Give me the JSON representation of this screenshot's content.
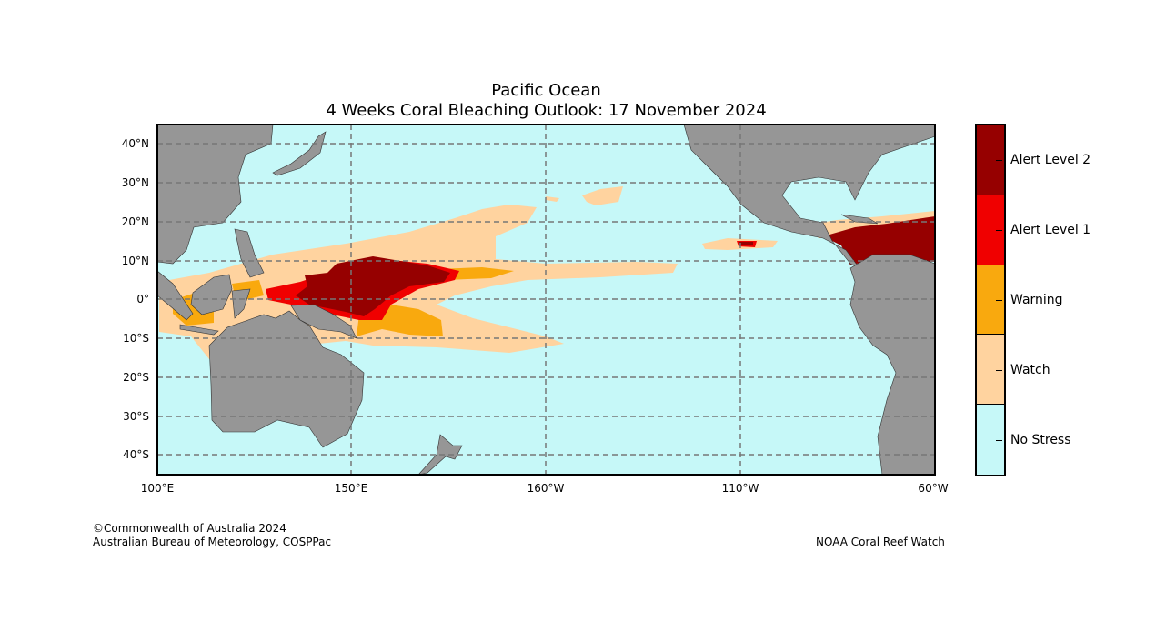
{
  "title": {
    "line1": "Pacific Ocean",
    "line2": "4 Weeks Coral Bleaching Outlook: 17 November 2024"
  },
  "map": {
    "extent_lon": [
      "100°E",
      "60°W"
    ],
    "lat_ticks": [
      "40°N",
      "30°N",
      "20°N",
      "10°N",
      "0°",
      "10°S",
      "20°S",
      "30°S",
      "40°S"
    ],
    "lon_ticks": [
      "100°E",
      "150°E",
      "160°W",
      "110°W",
      "60°W"
    ]
  },
  "colors": {
    "ocean": "#c6f8f8",
    "land": "#969696",
    "no_stress": "#c6f8f8",
    "watch": "#ffd39f",
    "warning": "#f9a90e",
    "alert1": "#f00000",
    "alert2": "#960000"
  },
  "legend": [
    "Alert Level 2",
    "Alert Level 1",
    "Warning",
    "Watch",
    "No Stress"
  ],
  "footer": {
    "copyright": "©Commonwealth of Australia 2024",
    "bureau": "Australian Bureau of Meteorology, COSPPac",
    "source": "NOAA Coral Reef Watch"
  }
}
